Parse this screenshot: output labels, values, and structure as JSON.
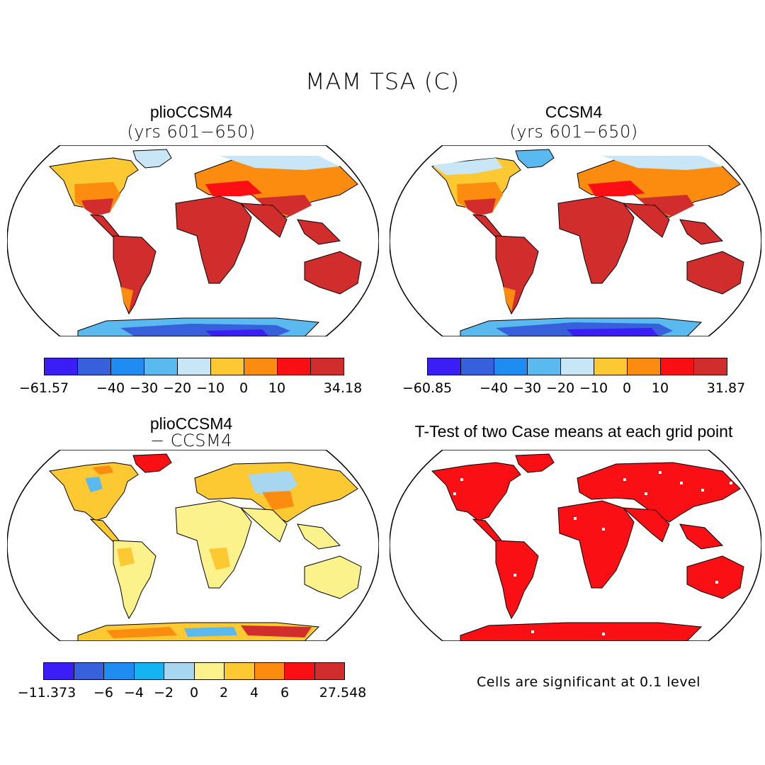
{
  "main_title": "MAM TSA (C)",
  "panels": [
    {
      "title": "plioCCSM4",
      "subtitle": "(yrs 601−650)"
    },
    {
      "title": "CCSM4",
      "subtitle": "(yrs 601−650)"
    },
    {
      "title": "plioCCSM4",
      "subtitle": "− CCSM4"
    },
    {
      "title": "T-Test of two Case means at each grid point",
      "subtitle": ""
    }
  ],
  "colorbars": [
    {
      "colors": [
        "#3b1ef5",
        "#3760dc",
        "#1e8cf0",
        "#5ab9ee",
        "#c8e6f5",
        "#fdc932",
        "#fb8c0f",
        "#fa0f14",
        "#d22d2d"
      ],
      "labels": [
        "−61.57",
        "−40",
        "−30",
        "−20",
        "−10",
        "0",
        "10",
        "34.18"
      ]
    },
    {
      "colors": [
        "#3b1ef5",
        "#3760dc",
        "#1e8cf0",
        "#5ab9ee",
        "#c8e6f5",
        "#fdc932",
        "#fb8c0f",
        "#fa0f14",
        "#d22d2d"
      ],
      "labels": [
        "−60.85",
        "−40",
        "−30",
        "−20",
        "−10",
        "0",
        "10",
        "31.87"
      ]
    },
    {
      "colors": [
        "#3b1ef5",
        "#3760dc",
        "#1e8cf0",
        "#14b4f0",
        "#a6d6f0",
        "#fbf28c",
        "#fdc932",
        "#fb8c0f",
        "#fa0f14",
        "#d22d2d"
      ],
      "labels": [
        "−11.373",
        "−6",
        "−4",
        "−2",
        "0",
        "2",
        "4",
        "6",
        "27.548"
      ]
    }
  ],
  "note": "Cells are significant at 0.1 level"
}
